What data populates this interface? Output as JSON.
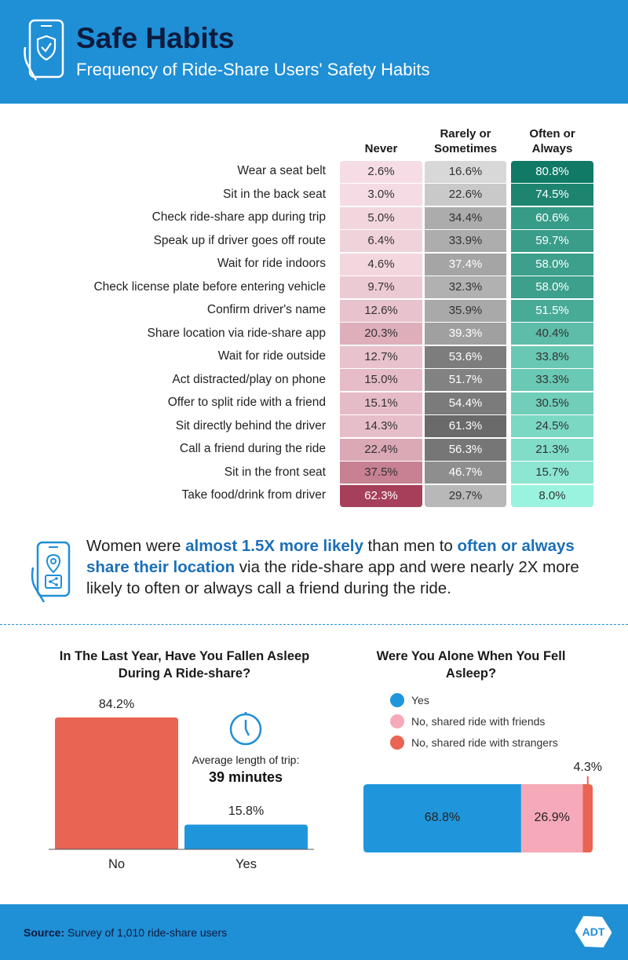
{
  "header": {
    "title": "Safe Habits",
    "subtitle": "Frequency of Ride-Share Users' Safety Habits",
    "icon": "shield-phone-icon"
  },
  "chart_data": [
    {
      "type": "table",
      "columns": [
        "Never",
        "Rarely or Sometimes",
        "Often or Always"
      ],
      "column_colors": [
        "#f06b86",
        "#8a8a8a",
        "#1c9e86"
      ],
      "rows": [
        {
          "label": "Wear a seat belt",
          "values": [
            "2.6%",
            "16.6%",
            "80.8%"
          ]
        },
        {
          "label": "Sit in the back seat",
          "values": [
            "3.0%",
            "22.6%",
            "74.5%"
          ]
        },
        {
          "label": "Check ride-share app during trip",
          "values": [
            "5.0%",
            "34.4%",
            "60.6%"
          ]
        },
        {
          "label": "Speak up if driver goes off route",
          "values": [
            "6.4%",
            "33.9%",
            "59.7%"
          ]
        },
        {
          "label": "Wait for ride indoors",
          "values": [
            "4.6%",
            "37.4%",
            "58.0%"
          ]
        },
        {
          "label": "Check license plate before entering vehicle",
          "values": [
            "9.7%",
            "32.3%",
            "58.0%"
          ]
        },
        {
          "label": "Confirm driver's name",
          "values": [
            "12.6%",
            "35.9%",
            "51.5%"
          ]
        },
        {
          "label": "Share location via ride-share app",
          "values": [
            "20.3%",
            "39.3%",
            "40.4%"
          ]
        },
        {
          "label": "Wait for ride outside",
          "values": [
            "12.7%",
            "53.6%",
            "33.8%"
          ]
        },
        {
          "label": "Act distracted/play on phone",
          "values": [
            "15.0%",
            "51.7%",
            "33.3%"
          ]
        },
        {
          "label": "Offer to split ride with a friend",
          "values": [
            "15.1%",
            "54.4%",
            "30.5%"
          ]
        },
        {
          "label": "Sit directly behind the driver",
          "values": [
            "14.3%",
            "61.3%",
            "24.5%"
          ]
        },
        {
          "label": "Call a friend during the ride",
          "values": [
            "22.4%",
            "56.3%",
            "21.3%"
          ]
        },
        {
          "label": "Sit in the front seat",
          "values": [
            "37.5%",
            "46.7%",
            "15.7%"
          ]
        },
        {
          "label": "Take food/drink from driver",
          "values": [
            "62.3%",
            "29.7%",
            "8.0%"
          ]
        }
      ]
    },
    {
      "type": "bar",
      "title": "In The Last Year, Have You Fallen Asleep During A Ride-share?",
      "categories": [
        "No",
        "Yes"
      ],
      "values": [
        84.2,
        15.8
      ],
      "value_labels": [
        "84.2%",
        "15.8%"
      ],
      "colors": [
        "#e96452",
        "#1f96dc"
      ],
      "ylim": [
        0,
        100
      ],
      "annotation": {
        "icon": "clock-icon",
        "label": "Average length of trip:",
        "value": "39 minutes"
      }
    },
    {
      "type": "bar",
      "orientation": "horizontal-stacked",
      "title": "Were You Alone When You Fell Asleep?",
      "series": [
        {
          "name": "Yes",
          "value": 68.8,
          "label": "68.8%",
          "color": "#1f96dc"
        },
        {
          "name": "No, shared ride with friends",
          "value": 26.9,
          "label": "26.9%",
          "color": "#f6a9b8"
        },
        {
          "name": "No, shared ride with strangers",
          "value": 4.3,
          "label": "4.3%",
          "color": "#e96452"
        }
      ],
      "legend_position": "top-left"
    }
  ],
  "insight": {
    "icon": "location-share-phone-icon",
    "t1": "Women were ",
    "h1": "almost 1.5X more likely",
    "t2": " than men to ",
    "h2": "often or always share their location",
    "t3": " via the ride-share app and were nearly 2X more likely to often or always call a friend during the ride."
  },
  "footer": {
    "source_label": "Source:",
    "source_text": " Survey of 1,010 ride-share users",
    "logo_text": "ADT"
  }
}
